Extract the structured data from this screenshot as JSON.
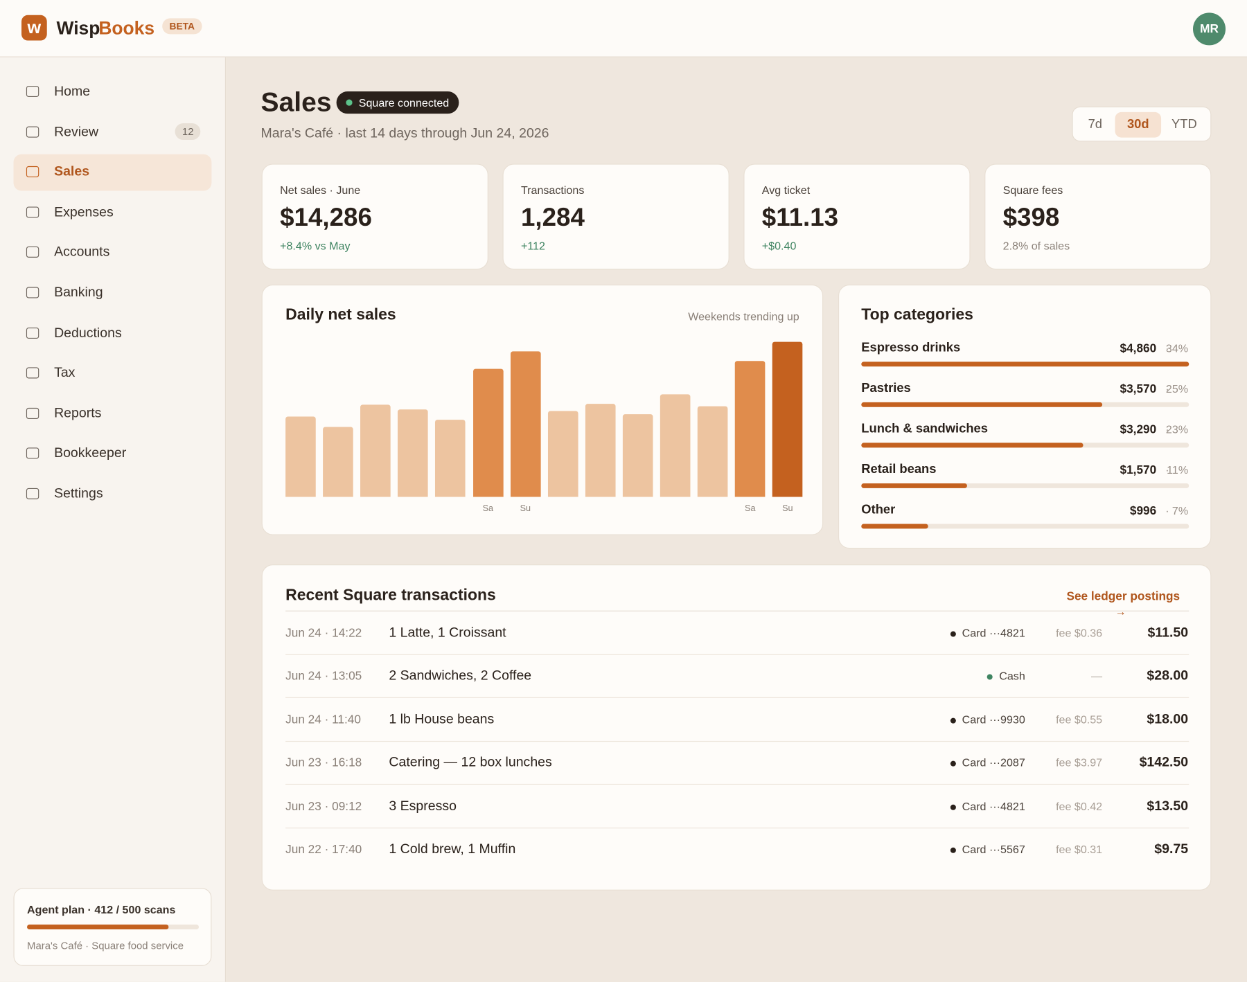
{
  "header": {
    "brand_a": "Wisp",
    "brand_b": "Books",
    "badge": "BETA",
    "avatar": "MR"
  },
  "nav": {
    "items": [
      "Home",
      "Review",
      "Sales",
      "Expenses",
      "Accounts",
      "Banking",
      "Deductions",
      "Tax",
      "Reports",
      "Bookkeeper",
      "Settings"
    ],
    "review_count": "12",
    "active": "Sales"
  },
  "plan": {
    "label": "Agent plan · 412 / 500 scans",
    "used": 412,
    "total": 500,
    "footer": "Mara's Café · Square food service"
  },
  "page": {
    "title": "Sales",
    "status": "Square connected",
    "subtitle": "Mara's Café · last 14 days through Jun 24, 2026",
    "ranges": [
      "7d",
      "30d",
      "YTD"
    ],
    "active_range": "30d"
  },
  "kpis": [
    {
      "label": "Net sales · June",
      "value": "$14,286",
      "delta": "+8.4% vs May",
      "delta_color": "#3f8461"
    },
    {
      "label": "Transactions",
      "value": "1,284",
      "delta": "+112",
      "delta_color": "#3f8461"
    },
    {
      "label": "Avg ticket",
      "value": "$11.13",
      "delta": "+$0.40",
      "delta_color": "#3f8461"
    },
    {
      "label": "Square fees",
      "value": "$398",
      "delta": "2.8% of sales",
      "delta_color": "#8a8078"
    }
  ],
  "chart_data": {
    "type": "bar",
    "title": "Daily net sales",
    "subtitle": "Weekends trending up",
    "categories": [
      null,
      null,
      null,
      null,
      null,
      "Sa",
      "Su",
      null,
      null,
      null,
      null,
      null,
      "Sa",
      "Su"
    ],
    "values": [
      101,
      88,
      116,
      110,
      97,
      161,
      183,
      108,
      117,
      104,
      129,
      114,
      171,
      195
    ],
    "colors": [
      "#edc4a0",
      "#edc4a0",
      "#edc4a0",
      "#edc4a0",
      "#edc4a0",
      "#e08c4c",
      "#e08c4c",
      "#edc4a0",
      "#edc4a0",
      "#edc4a0",
      "#edc4a0",
      "#edc4a0",
      "#e08c4c",
      "#c4611f"
    ]
  },
  "categories": {
    "title": "Top categories",
    "color": "#c4611f",
    "rows": [
      {
        "name": "Espresso drinks",
        "amount": "$4,860",
        "value": 4860,
        "share": "34%"
      },
      {
        "name": "Pastries",
        "amount": "$3,570",
        "value": 3570,
        "share": "25%"
      },
      {
        "name": "Lunch & sandwiches",
        "amount": "$3,290",
        "value": 3290,
        "share": "23%"
      },
      {
        "name": "Retail beans",
        "amount": "$1,570",
        "value": 1570,
        "share": "11%"
      },
      {
        "name": "Other",
        "amount": "$996",
        "value": 996,
        "share": "7%"
      }
    ]
  },
  "transactions": {
    "title": "Recent Square transactions",
    "link": "See ledger postings",
    "rows": [
      {
        "time": "Jun 24 · 14:22",
        "items": "1 Latte, 1 Croissant",
        "method": "Card ···4821",
        "dot": "#2a211b",
        "fee": "fee $0.36",
        "amount": "$11.50"
      },
      {
        "time": "Jun 24 · 13:05",
        "items": "2 Sandwiches, 2 Coffee",
        "method": "Cash",
        "dot": "#3f8461",
        "fee": "—",
        "amount": "$28.00"
      },
      {
        "time": "Jun 24 · 11:40",
        "items": "1 lb House beans",
        "method": "Card ···9930",
        "dot": "#2a211b",
        "fee": "fee $0.55",
        "amount": "$18.00"
      },
      {
        "time": "Jun 23 · 16:18",
        "items": "Catering — 12 box lunches",
        "method": "Card ···2087",
        "dot": "#2a211b",
        "fee": "fee $3.97",
        "amount": "$142.50"
      },
      {
        "time": "Jun 23 · 09:12",
        "items": "3 Espresso",
        "method": "Card ···4821",
        "dot": "#2a211b",
        "fee": "fee $0.42",
        "amount": "$13.50"
      },
      {
        "time": "Jun 22 · 17:40",
        "items": "1 Cold brew, 1 Muffin",
        "method": "Card ···5567",
        "dot": "#2a211b",
        "fee": "fee $0.31",
        "amount": "$9.75"
      }
    ]
  }
}
